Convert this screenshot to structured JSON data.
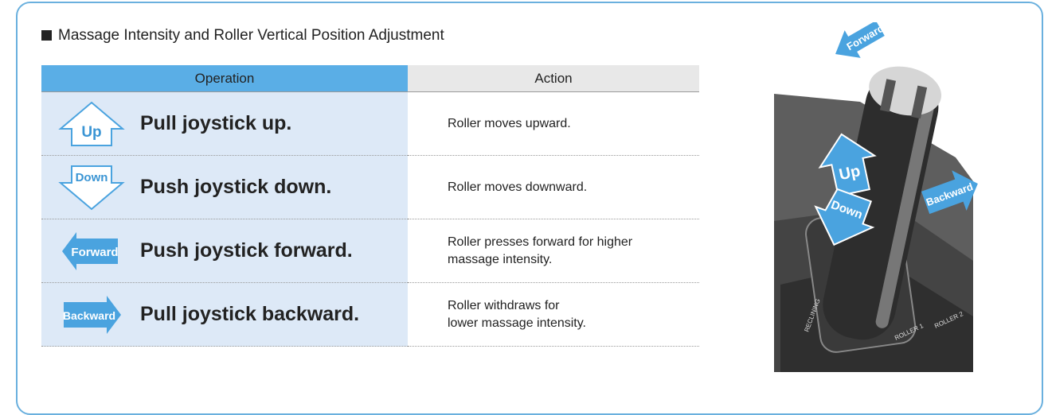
{
  "heading": "Massage Intensity and Roller Vertical Position Adjustment",
  "table": {
    "headers": [
      "Operation",
      "Action"
    ],
    "rows": [
      {
        "icon": "Up",
        "operation": "Pull joystick up.",
        "action": [
          "Roller moves upward."
        ]
      },
      {
        "icon": "Down",
        "operation": "Push joystick down.",
        "action": [
          "Roller moves downward."
        ]
      },
      {
        "icon": "Forward",
        "operation": "Push joystick forward.",
        "action": [
          "Roller presses forward for higher",
          "massage intensity."
        ]
      },
      {
        "icon": "Backward",
        "operation": "Pull joystick backward.",
        "action": [
          "Roller withdraws for",
          "lower massage intensity."
        ]
      }
    ]
  },
  "illustration": {
    "arrows": [
      "Forward",
      "Up",
      "Backward",
      "Down"
    ],
    "panel_labels": [
      "RECLINING",
      "ROLLER 1",
      "ROLLER 2"
    ]
  }
}
